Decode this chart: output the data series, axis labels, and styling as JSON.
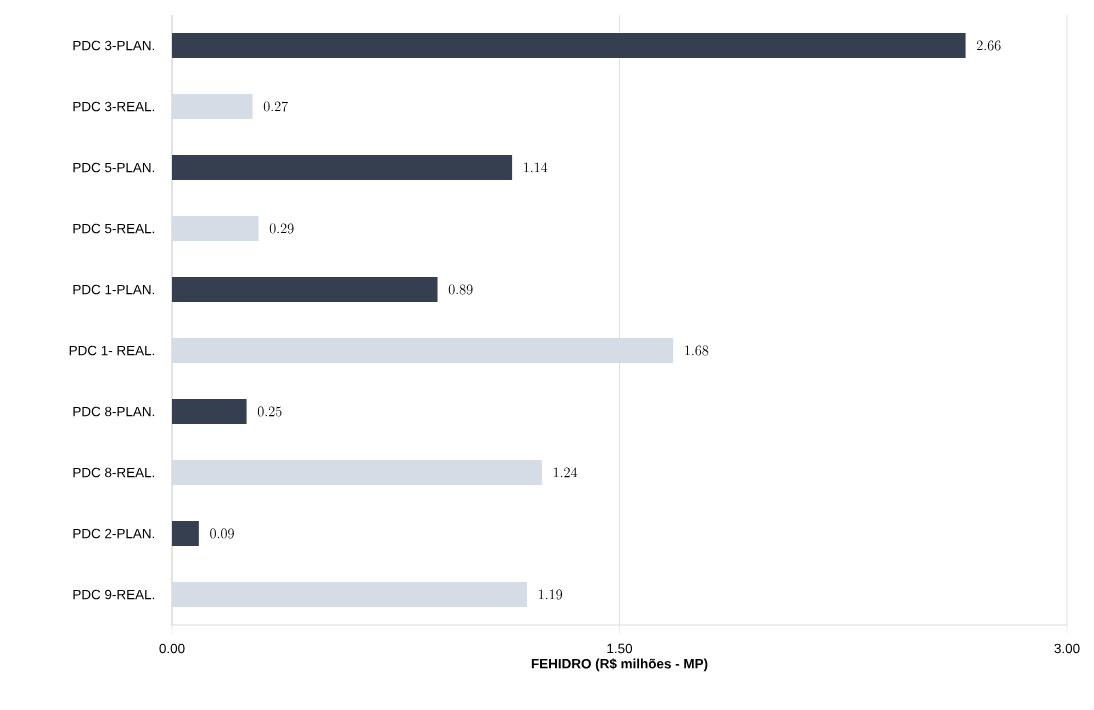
{
  "chart_data": {
    "type": "bar",
    "orientation": "horizontal",
    "xlabel": "FEHIDRO (R$ milhões - MP)",
    "categories": [
      "PDC 3-PLAN.",
      "PDC 3-REAL.",
      "PDC 5-PLAN.",
      "PDC 5-REAL.",
      "PDC 1-PLAN.",
      "PDC 1- REAL.",
      "PDC 8-PLAN.",
      "PDC 8-REAL.",
      "PDC 2-PLAN.",
      "PDC 9-REAL."
    ],
    "values": [
      2.66,
      0.27,
      1.14,
      0.29,
      0.89,
      1.68,
      0.25,
      1.24,
      0.09,
      1.19
    ],
    "colors": [
      "#353f50",
      "#d5dce6",
      "#353f50",
      "#d5dce6",
      "#353f50",
      "#d5dce6",
      "#353f50",
      "#d5dce6",
      "#353f50",
      "#d5dce6"
    ],
    "xlim": [
      0,
      3
    ],
    "xticks": [
      {
        "value": 0,
        "label": "0.00"
      },
      {
        "value": 1.5,
        "label": "1.50"
      },
      {
        "value": 3,
        "label": "3.00"
      }
    ],
    "grid": "x",
    "data_labels": true
  }
}
